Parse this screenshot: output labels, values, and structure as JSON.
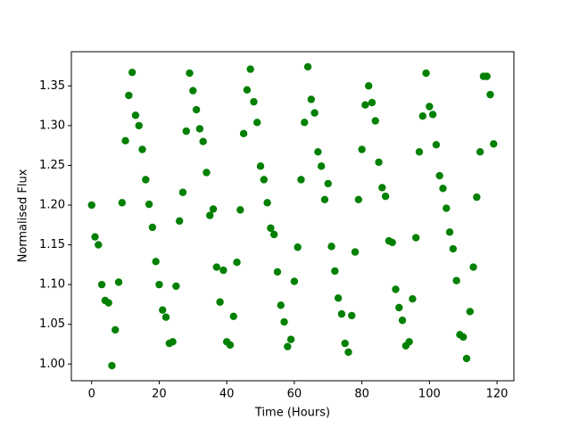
{
  "chart_data": {
    "type": "scatter",
    "x_label": "Time (Hours)",
    "y_label": "Normalised Flux",
    "x": [
      0,
      1,
      2,
      3,
      4,
      5,
      6,
      7,
      8,
      9,
      10,
      11,
      12,
      13,
      14,
      15,
      16,
      17,
      18,
      19,
      20,
      21,
      22,
      23,
      24,
      25,
      26,
      27,
      28,
      29,
      30,
      31,
      32,
      33,
      34,
      35,
      36,
      37,
      38,
      39,
      40,
      41,
      42,
      43,
      44,
      45,
      46,
      47,
      48,
      49,
      50,
      51,
      52,
      53,
      54,
      55,
      56,
      57,
      58,
      59,
      60,
      61,
      62,
      63,
      64,
      65,
      66,
      67,
      68,
      69,
      70,
      71,
      72,
      73,
      74,
      75,
      76,
      77,
      78,
      79,
      80,
      81,
      82,
      83,
      84,
      85,
      86,
      87,
      88,
      89,
      90,
      91,
      92,
      93,
      94,
      95,
      96,
      97,
      98,
      99,
      100,
      101,
      102,
      103,
      104,
      105,
      106,
      107,
      108,
      109,
      110,
      111,
      112,
      113,
      114,
      115,
      116,
      117,
      118,
      119
    ],
    "values": [
      1.2,
      1.16,
      1.15,
      1.1,
      1.08,
      1.077,
      0.998,
      1.043,
      1.103,
      1.203,
      1.281,
      1.338,
      1.367,
      1.313,
      1.3,
      1.27,
      1.232,
      1.201,
      1.172,
      1.129,
      1.1,
      1.068,
      1.059,
      1.026,
      1.028,
      1.098,
      1.18,
      1.216,
      1.293,
      1.366,
      1.344,
      1.32,
      1.296,
      1.28,
      1.241,
      1.187,
      1.195,
      1.122,
      1.078,
      1.118,
      1.028,
      1.024,
      1.06,
      1.128,
      1.194,
      1.29,
      1.345,
      1.371,
      1.33,
      1.304,
      1.249,
      1.232,
      1.203,
      1.171,
      1.163,
      1.116,
      1.074,
      1.053,
      1.022,
      1.031,
      1.104,
      1.147,
      1.232,
      1.304,
      1.374,
      1.333,
      1.316,
      1.267,
      1.249,
      1.207,
      1.227,
      1.148,
      1.117,
      1.083,
      1.063,
      1.026,
      1.015,
      1.061,
      1.141,
      1.207,
      1.27,
      1.326,
      1.35,
      1.329,
      1.306,
      1.254,
      1.222,
      1.211,
      1.155,
      1.153,
      1.094,
      1.071,
      1.055,
      1.023,
      1.028,
      1.082,
      1.159,
      1.267,
      1.312,
      1.366,
      1.324,
      1.314,
      1.276,
      1.237,
      1.221,
      1.196,
      1.166,
      1.145,
      1.105,
      1.037,
      1.034,
      1.007,
      1.066,
      1.122,
      1.21,
      1.267,
      1.362,
      1.362,
      1.339,
      1.277
    ],
    "color": "#008000",
    "xlim": [
      -6,
      125
    ],
    "xticks": [
      0,
      20,
      40,
      60,
      80,
      100,
      120
    ],
    "ylim": [
      0.979,
      1.393
    ],
    "yticks": [
      {
        "value": 1.0,
        "label": "1.00"
      },
      1.05,
      {
        "value": 1.1,
        "label": "1.10"
      },
      1.15,
      {
        "value": 1.2,
        "label": "1.20"
      },
      1.25,
      {
        "value": 1.3,
        "label": "1.30"
      },
      1.35
    ],
    "grid": false
  }
}
